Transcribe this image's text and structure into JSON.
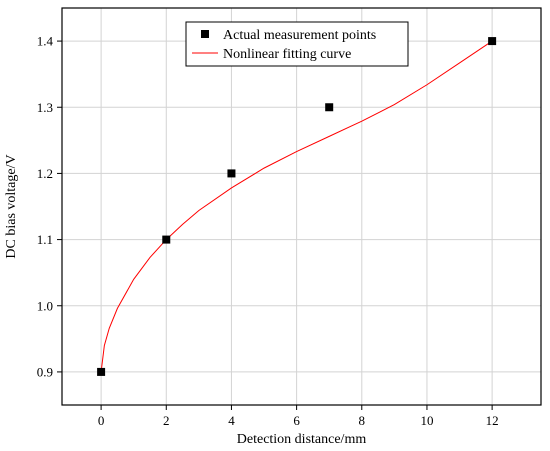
{
  "chart_data": {
    "type": "scatter",
    "title": "",
    "xlabel": "Detection distance/mm",
    "ylabel": "DC bias voltage/V",
    "xlim": [
      -1.2,
      13.5
    ],
    "ylim": [
      0.85,
      1.45
    ],
    "xticks": [
      "0",
      "2",
      "4",
      "6",
      "8",
      "10",
      "12"
    ],
    "yticks": [
      "0.9",
      "1.0",
      "1.1",
      "1.2",
      "1.3",
      "1.4"
    ],
    "grid": true,
    "legend_position": "top-center",
    "series": [
      {
        "name": "Actual measurement points",
        "kind": "scatter",
        "marker": "square",
        "color": "#000000",
        "x": [
          0,
          2,
          4,
          7,
          12
        ],
        "y": [
          0.9,
          1.1,
          1.2,
          1.3,
          1.4
        ]
      },
      {
        "name": "Nonlinear fitting curve",
        "kind": "line",
        "color": "#ff0000",
        "x": [
          0,
          0.1,
          0.25,
          0.5,
          1,
          1.5,
          2,
          2.5,
          3,
          4,
          5,
          6,
          7,
          8,
          9,
          10,
          11,
          12
        ],
        "y": [
          0.9,
          0.94,
          0.966,
          0.996,
          1.04,
          1.073,
          1.1,
          1.123,
          1.144,
          1.178,
          1.208,
          1.233,
          1.256,
          1.279,
          1.304,
          1.334,
          1.367,
          1.4
        ]
      }
    ]
  }
}
